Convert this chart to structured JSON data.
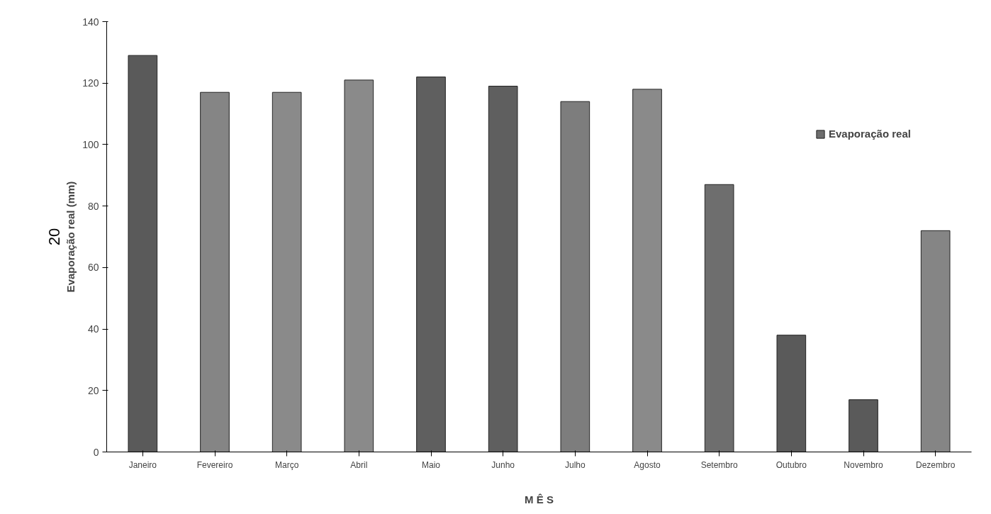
{
  "chart_data": {
    "type": "bar",
    "xlabel": "M Ê S",
    "ylabel": "Evaporação real (mm)",
    "categories": [
      "Janeiro",
      "Fevereiro",
      "Março",
      "Abril",
      "Maio",
      "Junho",
      "Julho",
      "Agosto",
      "Setembro",
      "Outubro",
      "Novembro",
      "Dezembro"
    ],
    "series": [
      {
        "name": "Evaporação real",
        "color": "#6e6e6e",
        "colors": [
          "#5a5a5a",
          "#858585",
          "#8a8a8a",
          "#8a8a8a",
          "#5f5f5f",
          "#5f5f5f",
          "#7d7d7d",
          "#8a8a8a",
          "#6e6e6e",
          "#5a5a5a",
          "#5a5a5a",
          "#858585"
        ],
        "values": [
          129,
          117,
          117,
          121,
          122,
          119,
          114,
          118,
          87,
          38,
          17,
          72
        ]
      }
    ],
    "ylim": [
      0,
      140
    ],
    "yticks": [
      0,
      20,
      40,
      60,
      80,
      100,
      120,
      140
    ],
    "grid": false,
    "legend": "right",
    "annotations": [
      "20"
    ]
  }
}
